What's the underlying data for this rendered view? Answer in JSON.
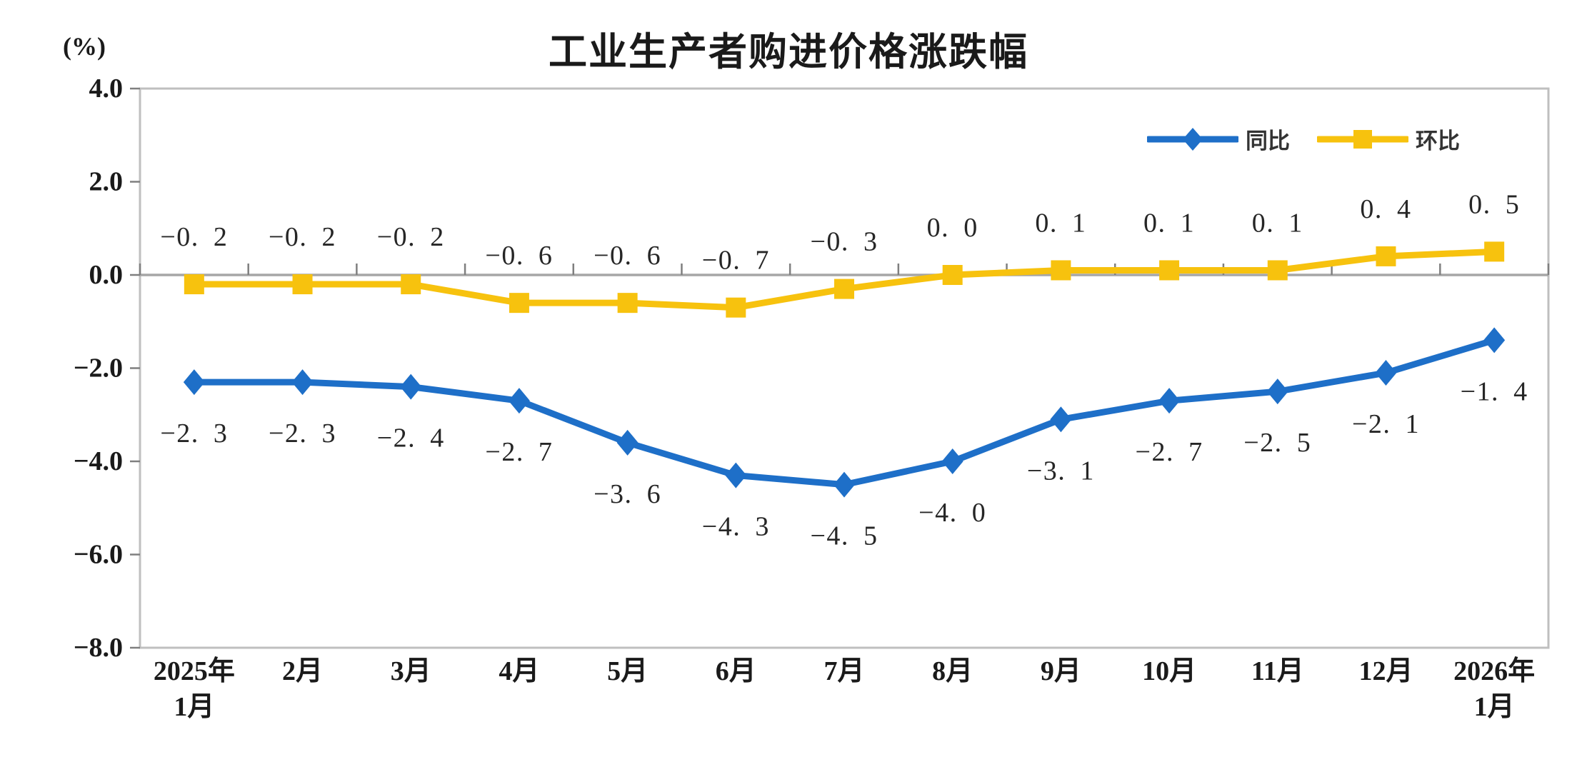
{
  "title": "工业生产者购进价格涨跌幅",
  "unit_label": "(%)",
  "legend": {
    "items": [
      {
        "label": "同比",
        "marker": "diamond"
      },
      {
        "label": "环比",
        "marker": "square"
      }
    ]
  },
  "colors": {
    "series_yoy_blue": "#1e6fc8",
    "series_mom_yellow": "#f7c20e",
    "zero_line": "#a6a6a6",
    "frame": "#bfbfbf",
    "tick": "#7f7f7f",
    "label_text": "#262626",
    "axis_text": "#1a1a1a"
  },
  "chart_data": {
    "type": "line",
    "title": "工业生产者购进价格涨跌幅",
    "unit": "(%)",
    "categories": [
      "2025年|1月",
      "2月",
      "3月",
      "4月",
      "5月",
      "6月",
      "7月",
      "8月",
      "9月",
      "10月",
      "11月",
      "12月",
      "2026年|1月"
    ],
    "series": [
      {
        "name": "同比",
        "marker": "diamond",
        "color": "#1e6fc8",
        "label_position": "below",
        "values": [
          -2.3,
          -2.3,
          -2.4,
          -2.7,
          -3.6,
          -4.3,
          -4.5,
          -4.0,
          -3.1,
          -2.7,
          -2.5,
          -2.1,
          -1.4
        ]
      },
      {
        "name": "环比",
        "marker": "square",
        "color": "#f7c20e",
        "label_position": "above",
        "values": [
          -0.2,
          -0.2,
          -0.2,
          -0.6,
          -0.6,
          -0.7,
          -0.3,
          0.0,
          0.1,
          0.1,
          0.1,
          0.4,
          0.5
        ]
      }
    ],
    "ylim": [
      -8.0,
      4.0
    ],
    "yticks": [
      4.0,
      2.0,
      0.0,
      -2.0,
      -4.0,
      -6.0,
      -8.0
    ],
    "grid": false,
    "legend_position": "top-right",
    "data_labels": true
  }
}
